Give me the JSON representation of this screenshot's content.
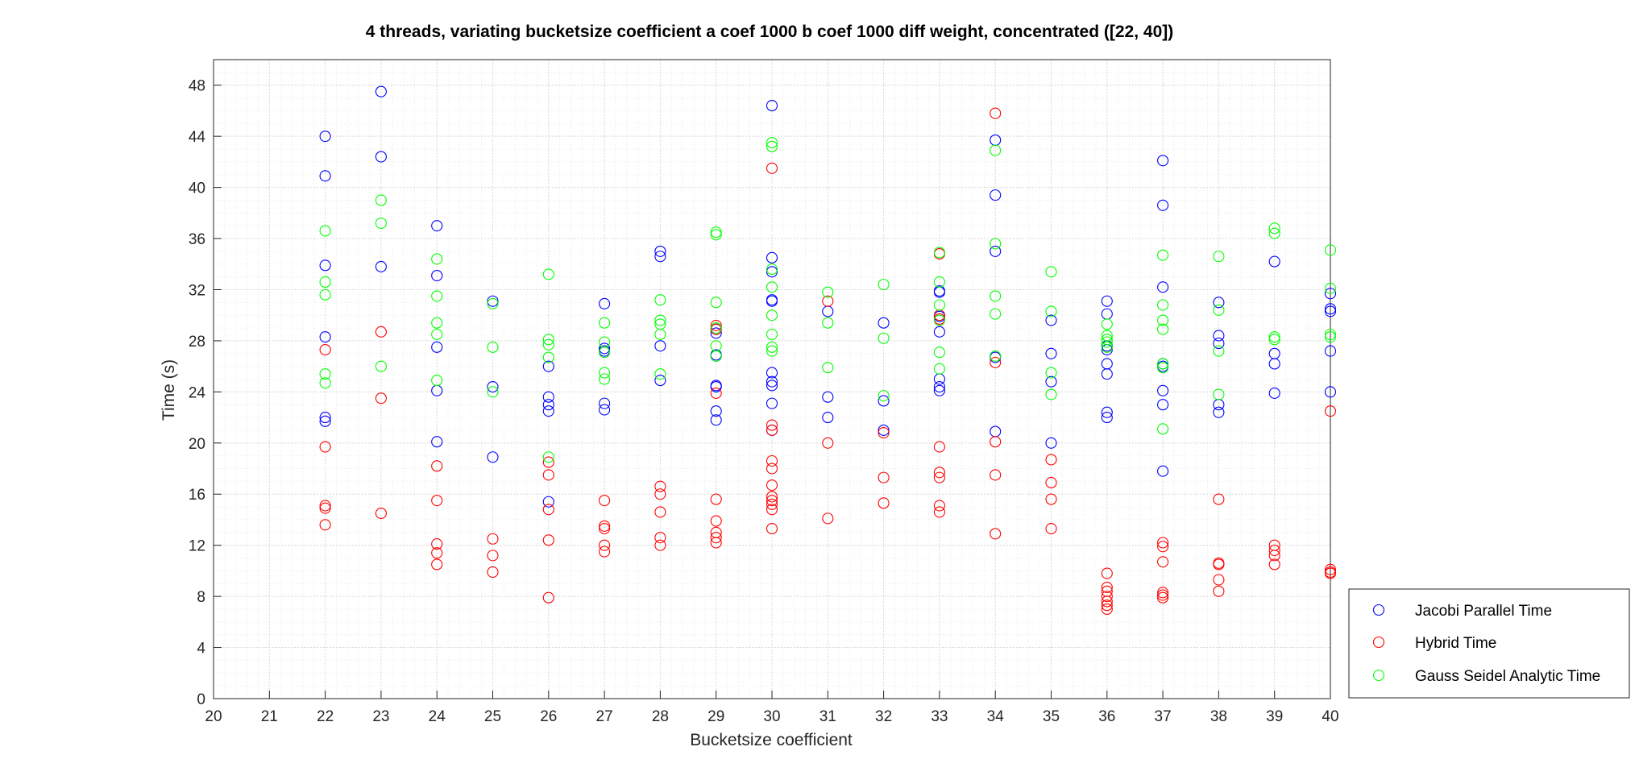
{
  "chart_data": {
    "type": "scatter",
    "title": "4 threads, variating bucketsize coefficient a coef 1000 b coef 1000 diff weight, concentrated ([22, 40])",
    "xlabel": "Bucketsize coefficient",
    "ylabel": "Time (s)",
    "xlim": [
      20,
      40
    ],
    "ylim": [
      0,
      50
    ],
    "xticks": [
      20,
      21,
      22,
      23,
      24,
      25,
      26,
      27,
      28,
      29,
      30,
      31,
      32,
      33,
      34,
      35,
      36,
      37,
      38,
      39,
      40
    ],
    "yticks": [
      0,
      4,
      8,
      12,
      16,
      20,
      24,
      28,
      32,
      36,
      40,
      44,
      48
    ],
    "grid": true,
    "minor_grid": true,
    "legend_position": "outside-right-bottom",
    "marker": "circle-open",
    "series": [
      {
        "name": "Jacobi Parallel Time",
        "color": "#0000ff",
        "points": [
          [
            22,
            44.0
          ],
          [
            22,
            40.9
          ],
          [
            22,
            33.9
          ],
          [
            22,
            28.3
          ],
          [
            22,
            22.0
          ],
          [
            22,
            21.7
          ],
          [
            23,
            47.5
          ],
          [
            23,
            42.4
          ],
          [
            23,
            33.8
          ],
          [
            24,
            37.0
          ],
          [
            24,
            33.1
          ],
          [
            24,
            27.5
          ],
          [
            24,
            24.1
          ],
          [
            24,
            20.1
          ],
          [
            25,
            31.1
          ],
          [
            25,
            24.4
          ],
          [
            25,
            18.9
          ],
          [
            26,
            26.0
          ],
          [
            26,
            23.6
          ],
          [
            26,
            23.0
          ],
          [
            26,
            22.5
          ],
          [
            26,
            15.4
          ],
          [
            27,
            30.9
          ],
          [
            27,
            27.4
          ],
          [
            27,
            27.2
          ],
          [
            27,
            23.1
          ],
          [
            27,
            22.6
          ],
          [
            28,
            35.0
          ],
          [
            28,
            34.6
          ],
          [
            28,
            27.6
          ],
          [
            28,
            24.9
          ],
          [
            29,
            28.9
          ],
          [
            29,
            28.6
          ],
          [
            29,
            26.9
          ],
          [
            29,
            24.5
          ],
          [
            29,
            24.4
          ],
          [
            29,
            22.5
          ],
          [
            29,
            21.8
          ],
          [
            30,
            46.4
          ],
          [
            30,
            34.5
          ],
          [
            30,
            33.4
          ],
          [
            30,
            31.2
          ],
          [
            30,
            31.1
          ],
          [
            30,
            25.5
          ],
          [
            30,
            24.8
          ],
          [
            30,
            24.5
          ],
          [
            30,
            23.1
          ],
          [
            30,
            21.0
          ],
          [
            31,
            30.3
          ],
          [
            31,
            23.6
          ],
          [
            31,
            22.0
          ],
          [
            32,
            29.4
          ],
          [
            32,
            23.3
          ],
          [
            32,
            21.0
          ],
          [
            33,
            31.9
          ],
          [
            33,
            31.8
          ],
          [
            33,
            29.9
          ],
          [
            33,
            28.7
          ],
          [
            33,
            25.0
          ],
          [
            33,
            24.4
          ],
          [
            33,
            24.1
          ],
          [
            34,
            43.7
          ],
          [
            34,
            39.4
          ],
          [
            34,
            35.0
          ],
          [
            34,
            26.7
          ],
          [
            34,
            20.9
          ],
          [
            35,
            29.6
          ],
          [
            35,
            27.0
          ],
          [
            35,
            24.8
          ],
          [
            35,
            20.0
          ],
          [
            36,
            31.1
          ],
          [
            36,
            30.1
          ],
          [
            36,
            27.6
          ],
          [
            36,
            27.3
          ],
          [
            36,
            26.2
          ],
          [
            36,
            25.4
          ],
          [
            36,
            22.4
          ],
          [
            36,
            22.0
          ],
          [
            37,
            42.1
          ],
          [
            37,
            38.6
          ],
          [
            37,
            32.2
          ],
          [
            37,
            26.2
          ],
          [
            37,
            26.0
          ],
          [
            37,
            24.1
          ],
          [
            37,
            23.0
          ],
          [
            37,
            17.8
          ],
          [
            38,
            31.0
          ],
          [
            38,
            28.4
          ],
          [
            38,
            27.8
          ],
          [
            38,
            23.0
          ],
          [
            38,
            22.4
          ],
          [
            39,
            34.2
          ],
          [
            39,
            27.0
          ],
          [
            39,
            26.2
          ],
          [
            39,
            23.9
          ],
          [
            40,
            31.7
          ],
          [
            40,
            30.5
          ],
          [
            40,
            30.3
          ],
          [
            40,
            27.2
          ],
          [
            40,
            24.0
          ]
        ]
      },
      {
        "name": "Hybrid Time",
        "color": "#ff0000",
        "points": [
          [
            22,
            27.3
          ],
          [
            22,
            19.7
          ],
          [
            22,
            15.1
          ],
          [
            22,
            14.9
          ],
          [
            22,
            13.6
          ],
          [
            23,
            28.7
          ],
          [
            23,
            23.5
          ],
          [
            23,
            14.5
          ],
          [
            24,
            18.2
          ],
          [
            24,
            15.5
          ],
          [
            24,
            12.1
          ],
          [
            24,
            11.4
          ],
          [
            24,
            10.5
          ],
          [
            25,
            12.5
          ],
          [
            25,
            11.2
          ],
          [
            25,
            9.9
          ],
          [
            26,
            18.5
          ],
          [
            26,
            17.5
          ],
          [
            26,
            14.8
          ],
          [
            26,
            12.4
          ],
          [
            26,
            7.9
          ],
          [
            27,
            15.5
          ],
          [
            27,
            13.5
          ],
          [
            27,
            13.3
          ],
          [
            27,
            12.0
          ],
          [
            27,
            11.5
          ],
          [
            28,
            16.6
          ],
          [
            28,
            16.0
          ],
          [
            28,
            14.6
          ],
          [
            28,
            12.6
          ],
          [
            28,
            12.0
          ],
          [
            29,
            29.2
          ],
          [
            29,
            28.9
          ],
          [
            29,
            23.9
          ],
          [
            29,
            15.6
          ],
          [
            29,
            13.9
          ],
          [
            29,
            13.0
          ],
          [
            29,
            12.6
          ],
          [
            29,
            12.2
          ],
          [
            30,
            41.5
          ],
          [
            30,
            21.4
          ],
          [
            30,
            21.0
          ],
          [
            30,
            18.6
          ],
          [
            30,
            18.0
          ],
          [
            30,
            16.7
          ],
          [
            30,
            15.8
          ],
          [
            30,
            15.5
          ],
          [
            30,
            15.2
          ],
          [
            30,
            14.8
          ],
          [
            30,
            13.3
          ],
          [
            31,
            31.1
          ],
          [
            31,
            20.0
          ],
          [
            31,
            14.1
          ],
          [
            32,
            20.8
          ],
          [
            32,
            17.3
          ],
          [
            32,
            15.3
          ],
          [
            33,
            34.8
          ],
          [
            33,
            30.0
          ],
          [
            33,
            29.7
          ],
          [
            33,
            19.7
          ],
          [
            33,
            17.7
          ],
          [
            33,
            17.3
          ],
          [
            33,
            15.1
          ],
          [
            33,
            14.6
          ],
          [
            34,
            45.8
          ],
          [
            34,
            26.3
          ],
          [
            34,
            20.1
          ],
          [
            34,
            17.5
          ],
          [
            34,
            12.9
          ],
          [
            35,
            18.7
          ],
          [
            35,
            16.9
          ],
          [
            35,
            15.6
          ],
          [
            35,
            13.3
          ],
          [
            36,
            9.8
          ],
          [
            36,
            8.7
          ],
          [
            36,
            8.4
          ],
          [
            36,
            8.0
          ],
          [
            36,
            7.6
          ],
          [
            36,
            7.3
          ],
          [
            36,
            7.0
          ],
          [
            37,
            12.2
          ],
          [
            37,
            11.9
          ],
          [
            37,
            10.7
          ],
          [
            37,
            8.3
          ],
          [
            37,
            8.1
          ],
          [
            37,
            7.9
          ],
          [
            38,
            15.6
          ],
          [
            38,
            10.6
          ],
          [
            38,
            10.5
          ],
          [
            38,
            9.3
          ],
          [
            38,
            8.4
          ],
          [
            39,
            12.0
          ],
          [
            39,
            11.6
          ],
          [
            39,
            11.2
          ],
          [
            39,
            10.5
          ],
          [
            40,
            22.5
          ],
          [
            40,
            10.1
          ],
          [
            40,
            9.9
          ],
          [
            40,
            9.8
          ]
        ]
      },
      {
        "name": "Gauss Seidel Analytic Time",
        "color": "#00ff00",
        "points": [
          [
            22,
            36.6
          ],
          [
            22,
            32.6
          ],
          [
            22,
            31.6
          ],
          [
            22,
            25.4
          ],
          [
            22,
            24.7
          ],
          [
            23,
            39.0
          ],
          [
            23,
            37.2
          ],
          [
            23,
            26.0
          ],
          [
            24,
            34.4
          ],
          [
            24,
            31.5
          ],
          [
            24,
            29.4
          ],
          [
            24,
            28.5
          ],
          [
            24,
            24.9
          ],
          [
            25,
            30.9
          ],
          [
            25,
            27.5
          ],
          [
            25,
            24.0
          ],
          [
            26,
            33.2
          ],
          [
            26,
            28.1
          ],
          [
            26,
            27.7
          ],
          [
            26,
            26.7
          ],
          [
            26,
            18.9
          ],
          [
            27,
            29.4
          ],
          [
            27,
            27.9
          ],
          [
            27,
            27.1
          ],
          [
            27,
            25.5
          ],
          [
            27,
            25.0
          ],
          [
            28,
            31.2
          ],
          [
            28,
            29.6
          ],
          [
            28,
            29.3
          ],
          [
            28,
            28.5
          ],
          [
            28,
            25.4
          ],
          [
            29,
            36.5
          ],
          [
            29,
            36.3
          ],
          [
            29,
            31.0
          ],
          [
            29,
            29.0
          ],
          [
            29,
            27.6
          ],
          [
            29,
            26.8
          ],
          [
            30,
            43.5
          ],
          [
            30,
            43.2
          ],
          [
            30,
            33.6
          ],
          [
            30,
            32.2
          ],
          [
            30,
            30.0
          ],
          [
            30,
            28.5
          ],
          [
            30,
            27.5
          ],
          [
            30,
            27.2
          ],
          [
            31,
            31.8
          ],
          [
            31,
            29.4
          ],
          [
            31,
            25.9
          ],
          [
            32,
            32.4
          ],
          [
            32,
            28.2
          ],
          [
            32,
            23.7
          ],
          [
            33,
            34.9
          ],
          [
            33,
            32.6
          ],
          [
            33,
            30.8
          ],
          [
            33,
            29.6
          ],
          [
            33,
            27.1
          ],
          [
            33,
            25.8
          ],
          [
            34,
            42.9
          ],
          [
            34,
            35.6
          ],
          [
            34,
            31.5
          ],
          [
            34,
            30.1
          ],
          [
            34,
            26.8
          ],
          [
            35,
            33.4
          ],
          [
            35,
            30.3
          ],
          [
            35,
            25.5
          ],
          [
            35,
            23.8
          ],
          [
            36,
            29.3
          ],
          [
            36,
            28.4
          ],
          [
            36,
            28.1
          ],
          [
            36,
            27.9
          ],
          [
            36,
            27.5
          ],
          [
            37,
            34.7
          ],
          [
            37,
            30.8
          ],
          [
            37,
            29.6
          ],
          [
            37,
            28.9
          ],
          [
            37,
            26.2
          ],
          [
            37,
            25.9
          ],
          [
            37,
            21.1
          ],
          [
            38,
            34.6
          ],
          [
            38,
            30.4
          ],
          [
            38,
            27.2
          ],
          [
            38,
            23.8
          ],
          [
            39,
            36.8
          ],
          [
            39,
            36.4
          ],
          [
            39,
            28.3
          ],
          [
            39,
            28.1
          ],
          [
            40,
            35.1
          ],
          [
            40,
            32.1
          ],
          [
            40,
            28.5
          ],
          [
            40,
            28.3
          ]
        ]
      }
    ]
  }
}
